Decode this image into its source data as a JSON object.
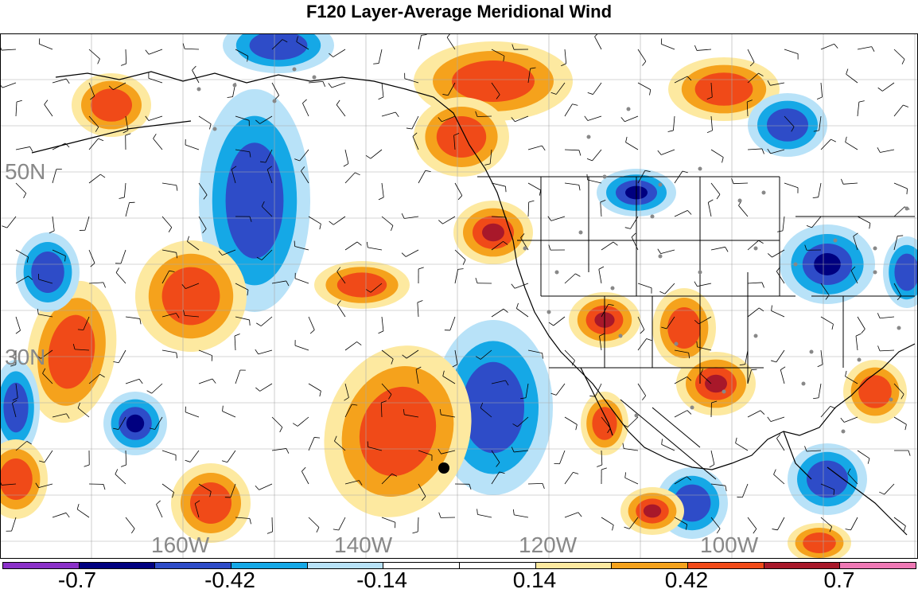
{
  "title": "F120 Layer-Average Meridional Wind",
  "map": {
    "lat_labels": [
      "50N",
      "30N"
    ],
    "lon_labels": [
      "160W",
      "140W",
      "120W",
      "100W"
    ],
    "colors": {
      "strong_neg": "#000080",
      "neg2": "#2e4cc8",
      "neg3": "#15a8e6",
      "neg4": "#b8e2f8",
      "pos4": "#fde9a0",
      "pos3": "#f5a21c",
      "pos2": "#f04a18",
      "strong_pos": "#a8182a",
      "marker": "#000000"
    }
  },
  "colorbar": {
    "colors": [
      "#8a30c8",
      "#000080",
      "#2e4cc8",
      "#15a8e6",
      "#b8e2f8",
      "#ffffff",
      "#ffffff",
      "#fde9a0",
      "#f5a21c",
      "#f04a18",
      "#a8182a",
      "#ee78b4"
    ],
    "labels": [
      "-0.7",
      "-0.42",
      "-0.14",
      "0.14",
      "0.42",
      "0.7"
    ]
  }
}
